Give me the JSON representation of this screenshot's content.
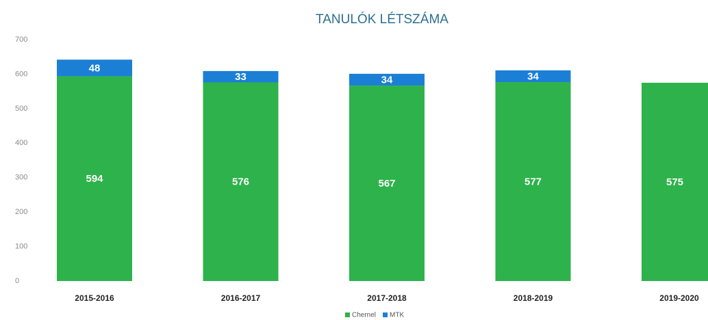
{
  "chart_data": {
    "type": "stacked_bar",
    "title": "TANULÓK LÉTSZÁMA",
    "categories": [
      "2015-2016",
      "2016-2017",
      "2017-2018",
      "2018-2019",
      "2019-2020"
    ],
    "series": [
      {
        "name": "Chernel",
        "color": "#2eb24b",
        "values": [
          594,
          576,
          567,
          577,
          575
        ]
      },
      {
        "name": "MTK",
        "color": "#1b7fd6",
        "values": [
          48,
          33,
          34,
          34,
          null
        ]
      }
    ],
    "ylim": [
      0,
      700
    ],
    "yticks": [
      0,
      100,
      200,
      300,
      400,
      500,
      600,
      700
    ],
    "grid": false,
    "legend": "bottom"
  }
}
